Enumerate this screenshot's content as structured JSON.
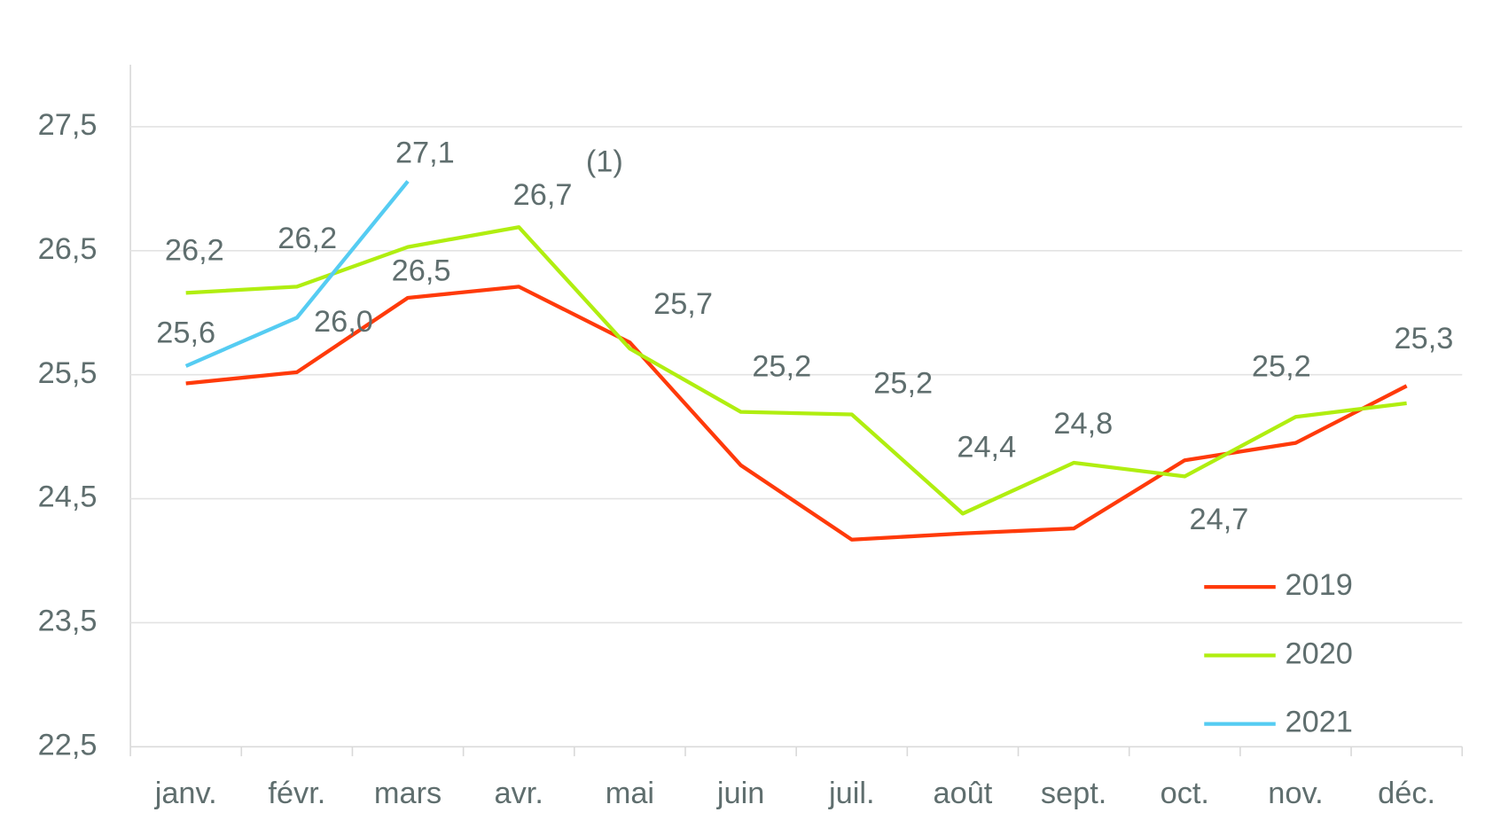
{
  "chart_data": {
    "type": "line",
    "annotation": "(1)",
    "categories": [
      "janv.",
      "févr.",
      "mars",
      "avr.",
      "mai",
      "juin",
      "juil.",
      "août",
      "sept.",
      "oct.",
      "nov.",
      "déc."
    ],
    "ylim": [
      22.5,
      28.0
    ],
    "yticks": [
      {
        "value": 22.5,
        "label": "22,5"
      },
      {
        "value": 23.5,
        "label": "23,5"
      },
      {
        "value": 24.5,
        "label": "24,5"
      },
      {
        "value": 25.5,
        "label": "25,5"
      },
      {
        "value": 26.5,
        "label": "26,5"
      },
      {
        "value": 27.5,
        "label": "27,5"
      }
    ],
    "grid": true,
    "legend": "lower right",
    "series": [
      {
        "name": "2019",
        "color": "#ff3a0a",
        "values": [
          25.43,
          25.52,
          26.12,
          26.21,
          25.76,
          24.77,
          24.17,
          24.22,
          24.26,
          24.81,
          24.95,
          25.41
        ]
      },
      {
        "name": "2020",
        "color": "#b0ee10",
        "values": [
          26.16,
          26.21,
          26.53,
          26.69,
          25.71,
          25.2,
          25.18,
          24.38,
          24.79,
          24.68,
          25.16,
          25.27
        ],
        "value_labels": [
          "26,2",
          "26,2",
          "26,5",
          "26,7",
          "25,7",
          "25,2",
          "25,2",
          "24,4",
          "24,8",
          "24,7",
          "25,2",
          "25,3"
        ]
      },
      {
        "name": "2021",
        "color": "#55ccf2",
        "values": [
          25.57,
          25.96,
          27.06,
          null,
          null,
          null,
          null,
          null,
          null,
          null,
          null,
          null
        ],
        "value_labels": [
          "25,6",
          "26,0",
          "27,1",
          null,
          null,
          null,
          null,
          null,
          null,
          null,
          null,
          null
        ]
      }
    ]
  }
}
